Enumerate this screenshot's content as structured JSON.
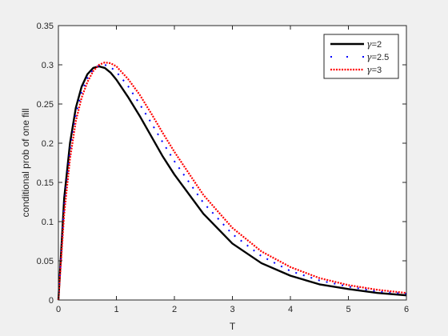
{
  "chart_data": {
    "type": "line",
    "title": "",
    "xlabel": "T",
    "ylabel": "conditional prob of one fill",
    "xlim": [
      0,
      6
    ],
    "ylim": [
      0,
      0.35
    ],
    "xticks": [
      0,
      1,
      2,
      3,
      4,
      5,
      6
    ],
    "xtick_labels": [
      "0",
      "1",
      "2",
      "3",
      "4",
      "5",
      "6"
    ],
    "yticks": [
      0,
      0.05,
      0.1,
      0.15,
      0.2,
      0.25,
      0.3,
      0.35
    ],
    "ytick_labels": [
      "0",
      "0.05",
      "0.1",
      "0.15",
      "0.2",
      "0.25",
      "0.3",
      "0.35"
    ],
    "grid": false,
    "legend_position": "top-right",
    "series": [
      {
        "name": "γ=2",
        "legend_symbol": "γ",
        "legend_value": "=2",
        "color": "#000000",
        "style": "solid",
        "x": [
          0,
          0.1,
          0.2,
          0.3,
          0.4,
          0.5,
          0.6,
          0.7,
          0.8,
          0.9,
          1.0,
          1.2,
          1.4,
          1.6,
          1.8,
          2.0,
          2.5,
          3.0,
          3.5,
          4.0,
          4.5,
          5.0,
          5.5,
          6.0
        ],
        "y": [
          0,
          0.13,
          0.2,
          0.245,
          0.272,
          0.288,
          0.296,
          0.298,
          0.296,
          0.29,
          0.281,
          0.259,
          0.235,
          0.209,
          0.183,
          0.16,
          0.11,
          0.072,
          0.047,
          0.031,
          0.02,
          0.014,
          0.009,
          0.006
        ]
      },
      {
        "name": "γ=2.5",
        "legend_symbol": "γ",
        "legend_value": "=2.5",
        "color": "#0000ff",
        "style": "dotted",
        "x": [
          0,
          0.1,
          0.2,
          0.3,
          0.4,
          0.5,
          0.6,
          0.7,
          0.8,
          0.9,
          1.0,
          1.2,
          1.4,
          1.6,
          1.8,
          2.0,
          2.5,
          3.0,
          3.5,
          4.0,
          4.5,
          5.0,
          5.5,
          6.0
        ],
        "y": [
          0,
          0.12,
          0.19,
          0.236,
          0.265,
          0.283,
          0.294,
          0.299,
          0.3,
          0.297,
          0.291,
          0.273,
          0.25,
          0.226,
          0.201,
          0.177,
          0.124,
          0.084,
          0.056,
          0.037,
          0.025,
          0.017,
          0.011,
          0.008
        ]
      },
      {
        "name": "γ=3",
        "legend_symbol": "γ",
        "legend_value": "=3",
        "color": "#ff0000",
        "style": "dotted",
        "x": [
          0,
          0.1,
          0.2,
          0.3,
          0.4,
          0.5,
          0.6,
          0.7,
          0.8,
          0.9,
          1.0,
          1.2,
          1.4,
          1.6,
          1.8,
          2.0,
          2.5,
          3.0,
          3.5,
          4.0,
          4.5,
          5.0,
          5.5,
          6.0
        ],
        "y": [
          0,
          0.11,
          0.18,
          0.228,
          0.258,
          0.278,
          0.292,
          0.3,
          0.303,
          0.302,
          0.298,
          0.282,
          0.262,
          0.238,
          0.213,
          0.189,
          0.134,
          0.092,
          0.062,
          0.042,
          0.028,
          0.019,
          0.013,
          0.009
        ]
      }
    ]
  }
}
